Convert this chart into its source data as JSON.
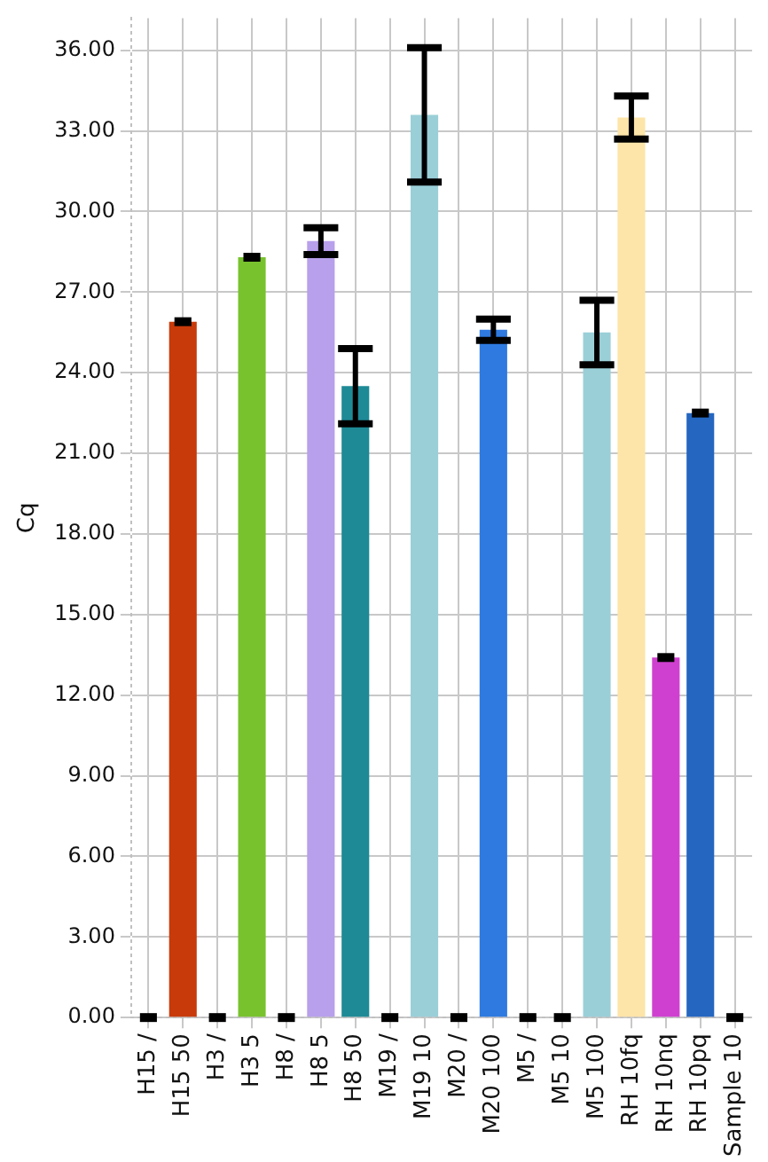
{
  "chart_data": {
    "type": "bar",
    "ylabel": "Cq",
    "categories": [
      "H15 /",
      "H15 50",
      "H3 /",
      "H3 5",
      "H8 /",
      "H8 5",
      "H8 50",
      "M19 /",
      "M19 10",
      "M20 /",
      "M20 100",
      "M5 /",
      "M5 10",
      "M5 100",
      "RH 10fq",
      "RH 10nq",
      "RH 10pq",
      "Sample 10"
    ],
    "values": [
      0,
      25.9,
      0,
      28.3,
      0,
      28.9,
      23.5,
      0,
      33.6,
      0,
      25.6,
      0,
      0,
      25.5,
      33.5,
      13.4,
      22.5,
      0
    ],
    "errors": [
      0,
      0,
      0,
      0,
      0,
      0.5,
      1.4,
      0,
      2.5,
      0,
      0.4,
      0,
      0,
      1.2,
      0.8,
      0,
      0,
      0
    ],
    "colors": [
      "#000000",
      "#c83a0a",
      "#000000",
      "#78c22e",
      "#000000",
      "#b8a0ec",
      "#1e8a96",
      "#000000",
      "#9acfd8",
      "#000000",
      "#2e7ae0",
      "#000000",
      "#000000",
      "#9acfd8",
      "#fde4a8",
      "#d040d0",
      "#2466c0",
      "#000000"
    ],
    "ylim": [
      0,
      37.2
    ],
    "yticks": [
      {
        "value": 0,
        "label": "0.00"
      },
      {
        "value": 3,
        "label": "3.00"
      },
      {
        "value": 6,
        "label": "6.00"
      },
      {
        "value": 9,
        "label": "9.00"
      },
      {
        "value": 12,
        "label": "12.00"
      },
      {
        "value": 15,
        "label": "15.00"
      },
      {
        "value": 18,
        "label": "18.00"
      },
      {
        "value": 21,
        "label": "21.00"
      },
      {
        "value": 24,
        "label": "24.00"
      },
      {
        "value": 27,
        "label": "27.00"
      },
      {
        "value": 30,
        "label": "30.00"
      },
      {
        "value": 33,
        "label": "33.00"
      },
      {
        "value": 36,
        "label": "36.00"
      }
    ],
    "grid": true,
    "legend": false
  }
}
